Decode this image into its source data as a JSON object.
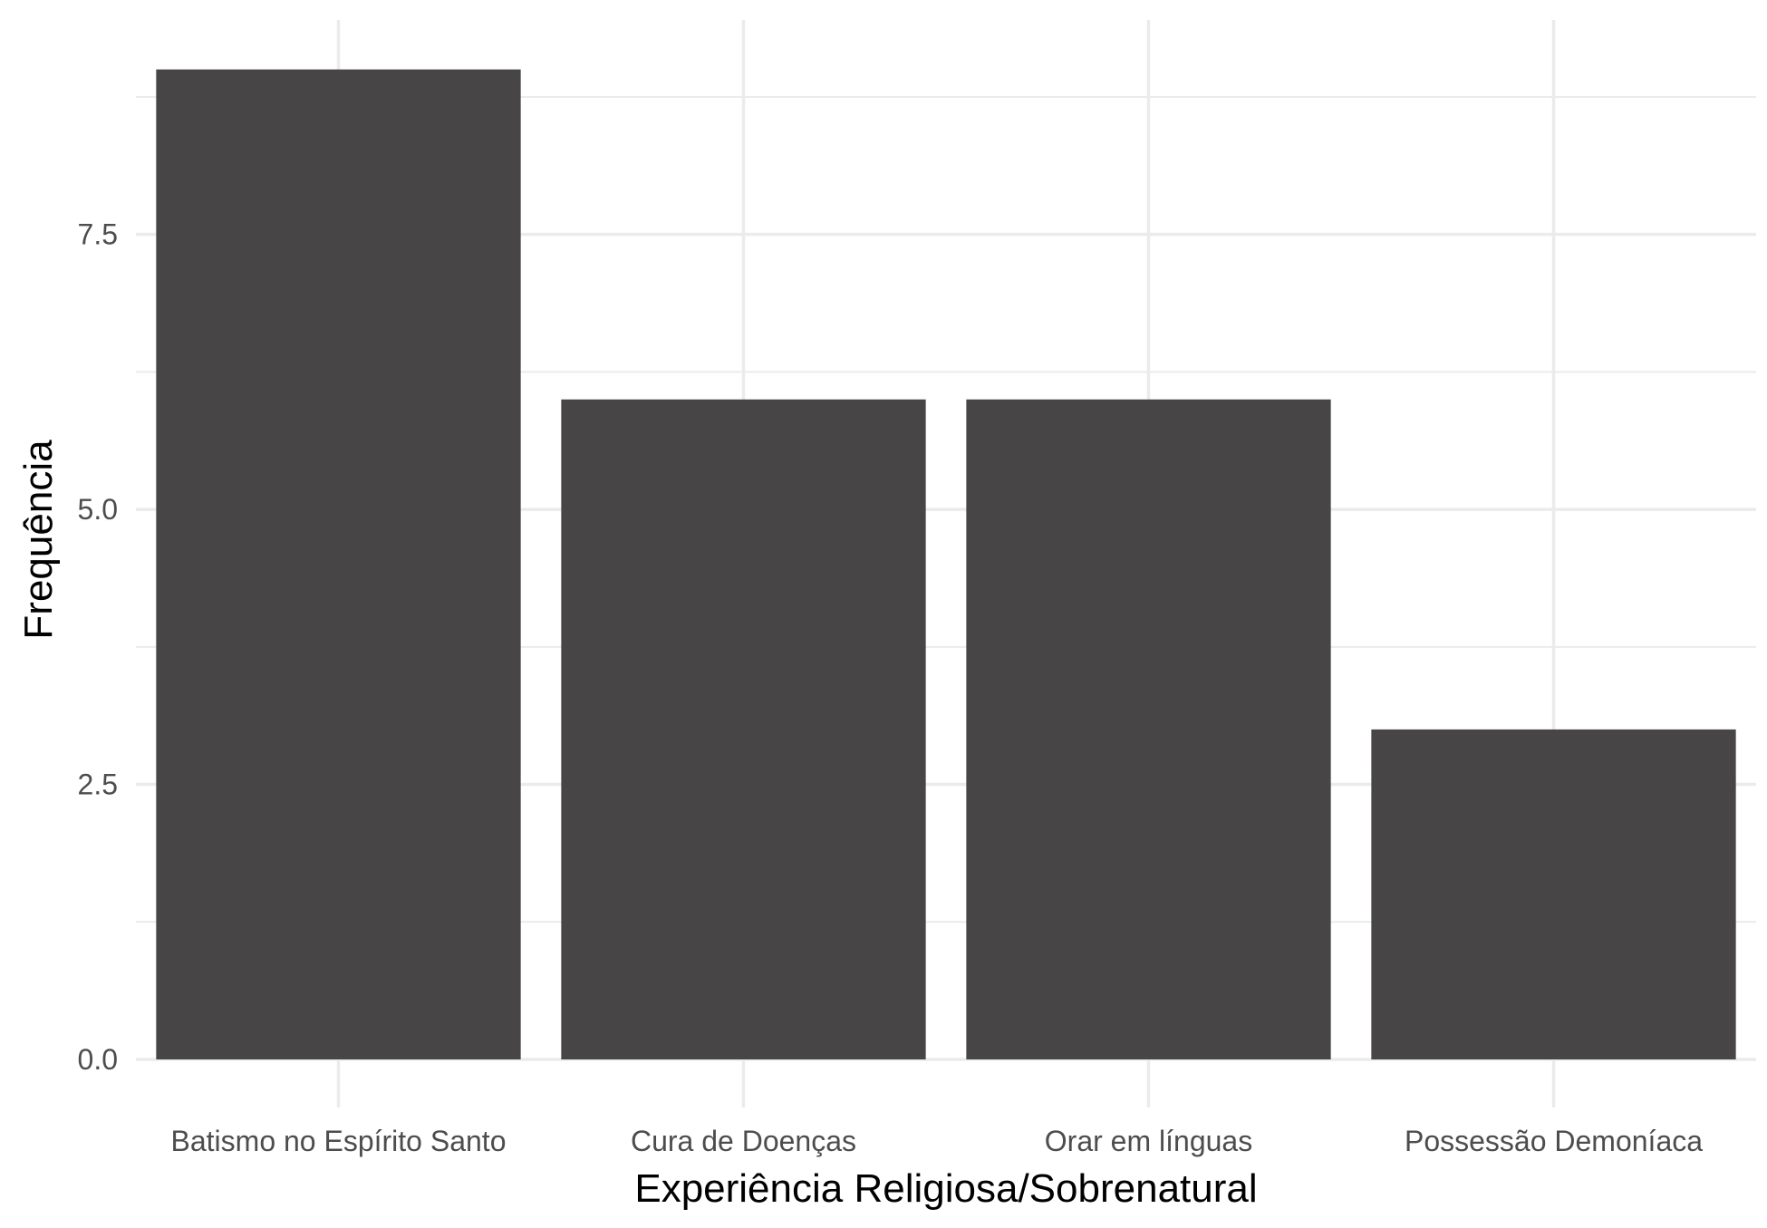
{
  "chart_data": {
    "type": "bar",
    "title": "",
    "xlabel": "Experiência Religiosa/Sobrenatural",
    "ylabel": "Frequência",
    "categories": [
      "Batismo no Espírito Santo",
      "Cura de Doenças",
      "Orar em línguas",
      "Possessão Demoníaca"
    ],
    "values": [
      9,
      6,
      6,
      3
    ],
    "ylim": [
      0,
      9.45
    ],
    "y_ticks": [
      0,
      2.5,
      5,
      7.5
    ],
    "y_tick_labels": [
      "0.0",
      "2.5",
      "5.0",
      "7.5"
    ],
    "grid": true,
    "legend": "none",
    "colors": {
      "bar": "#484546",
      "grid": "#ebebeb",
      "tick_text": "#4d4d4d",
      "axis_title": "#000000",
      "background": "#ffffff"
    }
  }
}
